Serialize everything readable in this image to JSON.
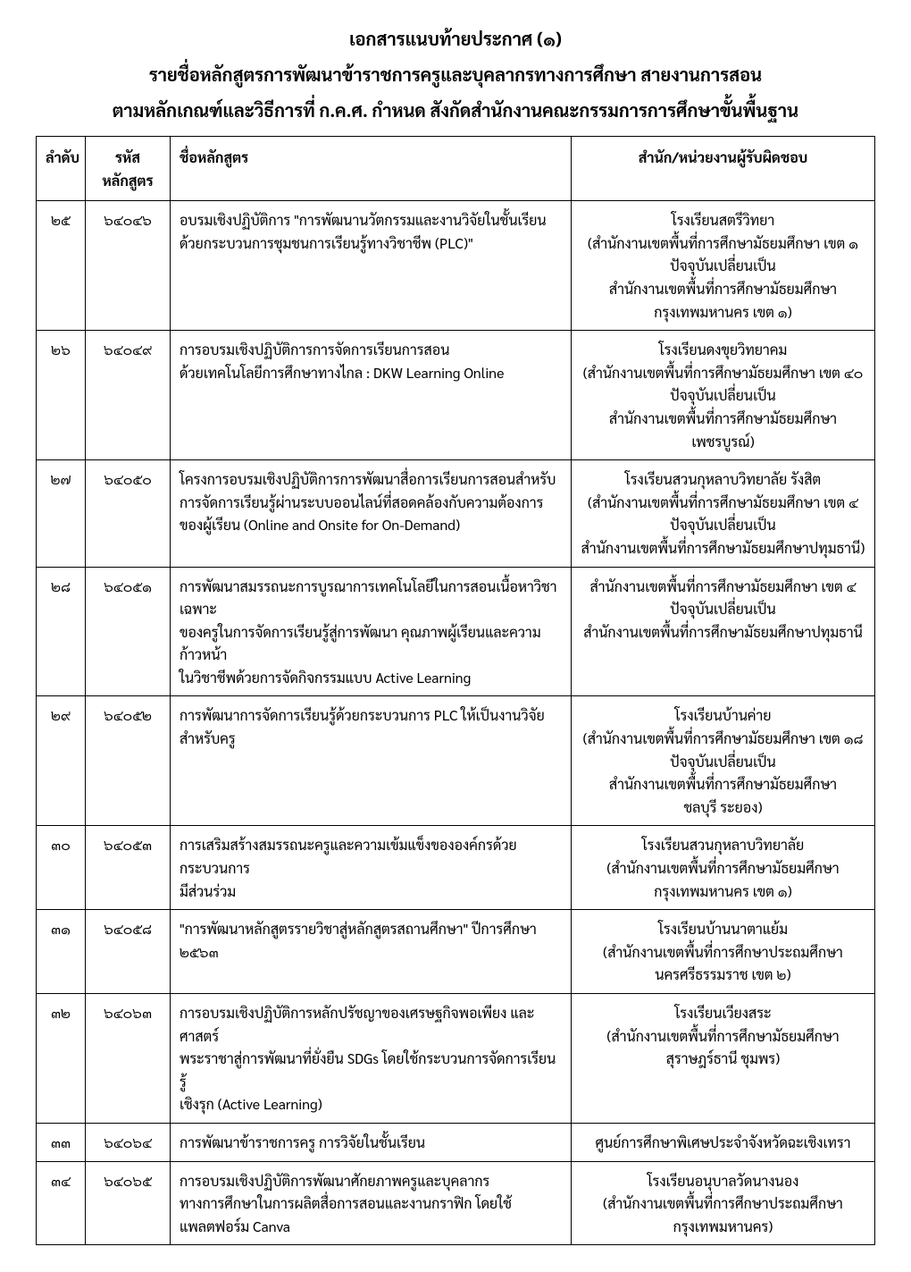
{
  "document": {
    "title": "เอกสารแนบท้ายประกาศ (๑)",
    "subtitle": "รายชื่อหลักสูตรการพัฒนาข้าราชการครูและบุคลากรทางการศึกษา สายงานการสอน",
    "heading": "ตามหลักเกณฑ์และวิธีการที่ ก.ค.ศ. กำหนด สังกัดสำนักงานคณะกรรมการการศึกษาขั้นพื้นฐาน"
  },
  "table": {
    "headers": {
      "seq": "ลำดับ",
      "code": "รหัสหลักสูตร",
      "name": "ชื่อหลักสูตร",
      "org": "สำนัก/หน่วยงานผู้รับผิดชอบ"
    },
    "rows": [
      {
        "seq": "๒๕",
        "code": "๖๔๐๔๖",
        "name": "อบรมเชิงปฏิบัติการ \"การพัฒนานวัตกรรมและงานวิจัยในชั้นเรียน\nด้วยกระบวนการชุมชนการเรียนรู้ทางวิชาชีพ (PLC)\"",
        "org": "โรงเรียนสตรีวิทยา\n(สำนักงานเขตพื้นที่การศึกษามัธยมศึกษา เขต ๑\nปัจจุบันเปลี่ยนเป็น\nสำนักงานเขตพื้นที่การศึกษามัธยมศึกษา\nกรุงเทพมหานคร เขต ๑)"
      },
      {
        "seq": "๒๖",
        "code": "๖๔๐๔๙",
        "name": "การอบรมเชิงปฏิบัติการการจัดการเรียนการสอน\nด้วยเทคโนโลยีการศึกษาทางไกล : DKW Learning Online",
        "org": "โรงเรียนดงขุยวิทยาคม\n(สำนักงานเขตพื้นที่การศึกษามัธยมศึกษา เขต ๔๐\nปัจจุบันเปลี่ยนเป็น\nสำนักงานเขตพื้นที่การศึกษามัธยมศึกษาเพชรบูรณ์)"
      },
      {
        "seq": "๒๗",
        "code": "๖๔๐๕๐",
        "name": "โครงการอบรมเชิงปฏิบัติการการพัฒนาสื่อการเรียนการสอนสำหรับ\nการจัดการเรียนรู้ผ่านระบบออนไลน์ที่สอดคล้องกับความต้องการ\nของผู้เรียน (Online and Onsite for On-Demand)",
        "org": "โรงเรียนสวนกุหลาบวิทยาลัย รังสิต\n(สำนักงานเขตพื้นที่การศึกษามัธยมศึกษา เขต ๔\nปัจจุบันเปลี่ยนเป็น\nสำนักงานเขตพื้นที่การศึกษามัธยมศึกษาปทุมธานี)"
      },
      {
        "seq": "๒๘",
        "code": "๖๔๐๕๑",
        "name": "การพัฒนาสมรรถนะการบูรณาการเทคโนโลยีในการสอนเนื้อหาวิชาเฉพาะ\nของครูในการจัดการเรียนรู้สู่การพัฒนา คุณภาพผู้เรียนและความก้าวหน้า\nในวิชาชีพด้วยการจัดกิจกรรมแบบ Active Learning",
        "org": "สำนักงานเขตพื้นที่การศึกษามัธยมศึกษา เขต ๔\nปัจจุบันเปลี่ยนเป็น\nสำนักงานเขตพื้นที่การศึกษามัธยมศึกษาปทุมธานี"
      },
      {
        "seq": "๒๙",
        "code": "๖๔๐๕๒",
        "name": "การพัฒนาการจัดการเรียนรู้ด้วยกระบวนการ PLC ให้เป็นงานวิจัยสำหรับครู",
        "org": "โรงเรียนบ้านค่าย\n(สำนักงานเขตพื้นที่การศึกษามัธยมศึกษา เขต ๑๘\nปัจจุบันเปลี่ยนเป็น\nสำนักงานเขตพื้นที่การศึกษามัธยมศึกษา\nชลบุรี ระยอง)"
      },
      {
        "seq": "๓๐",
        "code": "๖๔๐๕๓",
        "name": "การเสริมสร้างสมรรถนะครูและความเข้มแข็งขององค์กรด้วยกระบวนการ\nมีส่วนร่วม",
        "org": "โรงเรียนสวนกุหลาบวิทยาลัย\n(สำนักงานเขตพื้นที่การศึกษามัธยมศึกษา\nกรุงเทพมหานคร เขต ๑)"
      },
      {
        "seq": "๓๑",
        "code": "๖๔๐๕๘",
        "name": "\"การพัฒนาหลักสูตรรายวิชาสู่หลักสูตรสถานศึกษา\" ปีการศึกษา ๒๕๖๓",
        "org": "โรงเรียนบ้านนาตาแย้ม\n(สำนักงานเขตพื้นที่การศึกษาประถมศึกษา\nนครศรีธรรมราช เขต ๒)"
      },
      {
        "seq": "๓๒",
        "code": "๖๔๐๖๓",
        "name": "การอบรมเชิงปฏิบัติการหลักปรัชญาของเศรษฐกิจพอเพียง และศาสตร์\nพระราชาสู่การพัฒนาที่ยั่งยืน SDGs โดยใช้กระบวนการจัดการเรียนรู้\nเชิงรุก (Active Learning)",
        "org": "โรงเรียนเวียงสระ\n(สำนักงานเขตพื้นที่การศึกษามัธยมศึกษา\nสุราษฎร์ธานี ชุมพร)"
      },
      {
        "seq": "๓๓",
        "code": "๖๔๐๖๔",
        "name": "การพัฒนาข้าราชการครู การวิจัยในชั้นเรียน",
        "org": "ศูนย์การศึกษาพิเศษประจำจังหวัดฉะเชิงเทรา"
      },
      {
        "seq": "๓๔",
        "code": "๖๔๐๖๕",
        "name": "การอบรมเชิงปฏิบัติการพัฒนาศักยภาพครูและบุคลากร\nทางการศึกษาในการผลิตสื่อการสอนและงานกราฟิก โดยใช้แพลตฟอร์ม Canva",
        "org": "โรงเรียนอนุบาลวัดนางนอง\n(สำนักงานเขตพื้นที่การศึกษาประถมศึกษา\nกรุงเทพมหานคร)"
      }
    ]
  },
  "styling": {
    "page_bg": "#ffffff",
    "border_color": "#000000",
    "border_width": 1.5,
    "title_fontsize": 20,
    "body_fontsize": 16,
    "col_widths": {
      "seq": 55,
      "code": 95,
      "org": 340
    }
  }
}
